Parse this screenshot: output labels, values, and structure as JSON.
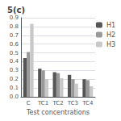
{
  "chart_data": {
    "type": "bar",
    "title": "5(c)",
    "xlabel": "Test concentrations",
    "categories": [
      "C",
      "TC1",
      "TC2",
      "TC3",
      "TC4"
    ],
    "series": [
      {
        "name": "H1",
        "color": "#555555",
        "values": [
          0.44,
          0.32,
          0.28,
          0.25,
          0.2
        ]
      },
      {
        "name": "H2",
        "color": "#999999",
        "values": [
          0.51,
          0.3,
          0.27,
          0.2,
          0.19
        ]
      },
      {
        "name": "H3",
        "color": "#c8c8c8",
        "values": [
          0.83,
          0.2,
          0.21,
          0.15,
          0.12
        ]
      }
    ],
    "ylim": [
      0,
      0.9
    ],
    "yticks": [
      {
        "value": 0.0,
        "label": "0.0"
      },
      0.1,
      0.2,
      0.3,
      0.4,
      0.5,
      0.6,
      0.7,
      0.8,
      0.9
    ],
    "grid": true,
    "legend": "right"
  }
}
